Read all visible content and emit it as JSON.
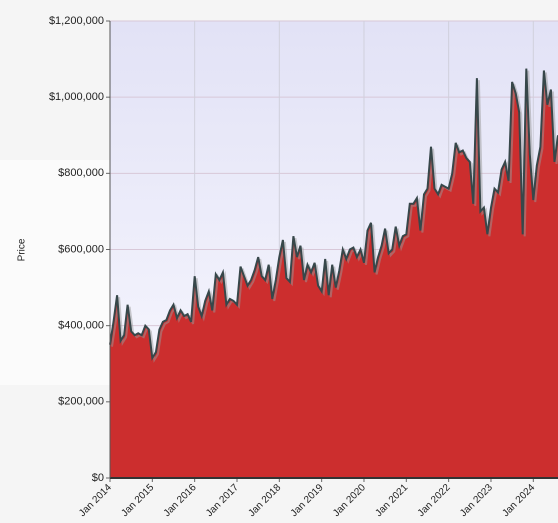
{
  "chart_data": {
    "type": "area",
    "y_label": "Price",
    "x": [
      "2014-01",
      "2014-02",
      "2014-03",
      "2014-04",
      "2014-05",
      "2014-06",
      "2014-07",
      "2014-08",
      "2014-09",
      "2014-10",
      "2014-11",
      "2014-12",
      "2015-01",
      "2015-02",
      "2015-03",
      "2015-04",
      "2015-05",
      "2015-06",
      "2015-07",
      "2015-08",
      "2015-09",
      "2015-10",
      "2015-11",
      "2015-12",
      "2016-01",
      "2016-02",
      "2016-03",
      "2016-04",
      "2016-05",
      "2016-06",
      "2016-07",
      "2016-08",
      "2016-09",
      "2016-10",
      "2016-11",
      "2016-12",
      "2017-01",
      "2017-02",
      "2017-03",
      "2017-04",
      "2017-05",
      "2017-06",
      "2017-07",
      "2017-08",
      "2017-09",
      "2017-10",
      "2017-11",
      "2017-12",
      "2018-01",
      "2018-02",
      "2018-03",
      "2018-04",
      "2018-05",
      "2018-06",
      "2018-07",
      "2018-08",
      "2018-09",
      "2018-10",
      "2018-11",
      "2018-12",
      "2019-01",
      "2019-02",
      "2019-03",
      "2019-04",
      "2019-05",
      "2019-06",
      "2019-07",
      "2019-08",
      "2019-09",
      "2019-10",
      "2019-11",
      "2019-12",
      "2020-01",
      "2020-02",
      "2020-03",
      "2020-04",
      "2020-05",
      "2020-06",
      "2020-07",
      "2020-08",
      "2020-09",
      "2020-10",
      "2020-11",
      "2020-12",
      "2021-01",
      "2021-02",
      "2021-03",
      "2021-04",
      "2021-05",
      "2021-06",
      "2021-07",
      "2021-08",
      "2021-09",
      "2021-10",
      "2021-11",
      "2021-12",
      "2022-01",
      "2022-02",
      "2022-03",
      "2022-04",
      "2022-05",
      "2022-06",
      "2022-07",
      "2022-08",
      "2022-09",
      "2022-10",
      "2022-11",
      "2022-12",
      "2023-01",
      "2023-02",
      "2023-03",
      "2023-04",
      "2023-05",
      "2023-06",
      "2023-07",
      "2023-08",
      "2023-09",
      "2023-10",
      "2023-11",
      "2023-12",
      "2024-01",
      "2024-02",
      "2024-03",
      "2024-04",
      "2024-05",
      "2024-06",
      "2024-07",
      "2024-08"
    ],
    "values": [
      350000,
      410000,
      480000,
      360000,
      375000,
      455000,
      385000,
      375000,
      380000,
      375000,
      400000,
      390000,
      315000,
      330000,
      390000,
      410000,
      415000,
      440000,
      455000,
      420000,
      440000,
      425000,
      430000,
      410000,
      530000,
      450000,
      425000,
      465000,
      490000,
      440000,
      535000,
      520000,
      540000,
      455000,
      470000,
      465000,
      455000,
      555000,
      530000,
      505000,
      520000,
      545000,
      580000,
      530000,
      520000,
      560000,
      470000,
      520000,
      580000,
      625000,
      525000,
      515000,
      635000,
      580000,
      610000,
      520000,
      560000,
      540000,
      565000,
      505000,
      490000,
      575000,
      480000,
      560000,
      500000,
      545000,
      600000,
      575000,
      600000,
      605000,
      580000,
      600000,
      565000,
      650000,
      670000,
      540000,
      580000,
      610000,
      655000,
      590000,
      600000,
      660000,
      610000,
      635000,
      640000,
      720000,
      720000,
      735000,
      650000,
      745000,
      760000,
      870000,
      760000,
      745000,
      770000,
      765000,
      760000,
      800000,
      880000,
      855000,
      860000,
      840000,
      830000,
      720000,
      1050000,
      700000,
      710000,
      640000,
      710000,
      760000,
      750000,
      810000,
      830000,
      780000,
      1040000,
      1010000,
      960000,
      640000,
      1075000,
      850000,
      730000,
      820000,
      870000,
      1070000,
      980000,
      1020000,
      830000,
      900000
    ],
    "color": "#cc2e2e",
    "line_color": "#37474a",
    "xlim": [
      "2014-01",
      "2024-08"
    ],
    "xticks": [
      {
        "value": "2014-01",
        "label": "Jan 2014"
      },
      {
        "value": "2015-01",
        "label": "Jan 2015"
      },
      {
        "value": "2016-01",
        "label": "Jan 2016"
      },
      {
        "value": "2017-01",
        "label": "Jan 2017"
      },
      {
        "value": "2018-01",
        "label": "Jan 2018"
      },
      {
        "value": "2019-01",
        "label": "Jan 2019"
      },
      {
        "value": "2020-01",
        "label": "Jan 2020"
      },
      {
        "value": "2021-01",
        "label": "Jan 2021"
      },
      {
        "value": "2022-01",
        "label": "Jan 2022"
      },
      {
        "value": "2023-01",
        "label": "Jan 2023"
      },
      {
        "value": "2024-01",
        "label": "Jan 2024"
      }
    ],
    "ylim": [
      0,
      1200000
    ],
    "yticks": [
      {
        "value": 0,
        "label": "$0"
      },
      {
        "value": 200000,
        "label": "$200,000"
      },
      {
        "value": 400000,
        "label": "$400,000"
      },
      {
        "value": 600000,
        "label": "$600,000"
      },
      {
        "value": 800000,
        "label": "$800,000"
      },
      {
        "value": 1000000,
        "label": "$1,000,000"
      },
      {
        "value": 1200000,
        "label": "$1,200,000"
      }
    ],
    "grid": true
  }
}
